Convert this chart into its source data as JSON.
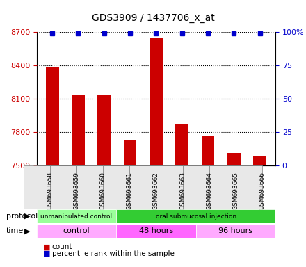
{
  "title": "GDS3909 / 1437706_x_at",
  "samples": [
    "GSM693658",
    "GSM693659",
    "GSM693660",
    "GSM693661",
    "GSM693662",
    "GSM693663",
    "GSM693664",
    "GSM693665",
    "GSM693666"
  ],
  "red_values": [
    8390,
    8140,
    8140,
    7730,
    8650,
    7870,
    7770,
    7610,
    7590
  ],
  "blue_values": [
    100,
    100,
    100,
    100,
    100,
    100,
    100,
    100,
    100
  ],
  "ylim_left": [
    7500,
    8700
  ],
  "ylim_right": [
    0,
    100
  ],
  "yticks_left": [
    7500,
    7800,
    8100,
    8400,
    8700
  ],
  "yticks_right": [
    0,
    25,
    50,
    75,
    100
  ],
  "bar_color": "#cc0000",
  "dot_color": "#0000cc",
  "protocol_groups": [
    {
      "label": "unmanipulated control",
      "start": 0,
      "end": 3,
      "color": "#99ff99"
    },
    {
      "label": "oral submucosal injection",
      "start": 3,
      "end": 9,
      "color": "#33cc33"
    }
  ],
  "time_groups": [
    {
      "label": "control",
      "start": 0,
      "end": 3,
      "color": "#ffaaff"
    },
    {
      "label": "48 hours",
      "start": 3,
      "end": 6,
      "color": "#ff66ff"
    },
    {
      "label": "96 hours",
      "start": 6,
      "end": 9,
      "color": "#ffaaff"
    }
  ],
  "protocol_label": "protocol",
  "time_label": "time",
  "legend_count_color": "#cc0000",
  "legend_percentile_color": "#0000cc",
  "bg_color": "#ffffff",
  "grid_color": "#000000",
  "left_tick_color": "#cc0000",
  "right_tick_color": "#0000cc"
}
